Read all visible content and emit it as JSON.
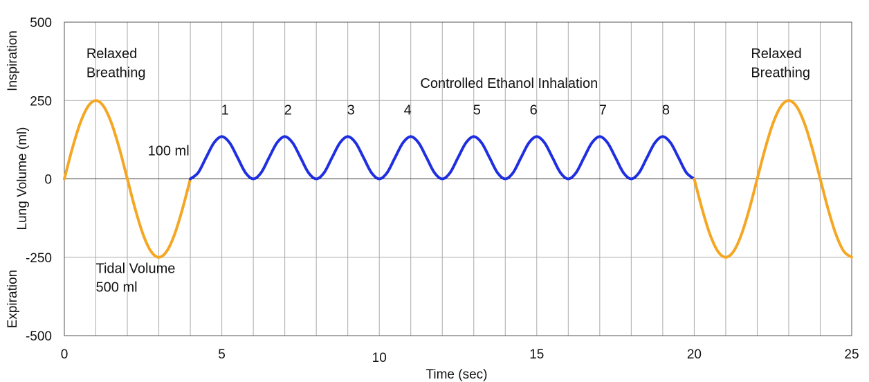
{
  "chart_data": {
    "type": "line",
    "title": "",
    "xlabel": "Time (sec)",
    "ylabel": "Lung Volume (ml)",
    "ylabel_top": "Inspiration",
    "ylabel_bottom": "Expiration",
    "xlim": [
      0,
      25
    ],
    "ylim": [
      -500,
      500
    ],
    "x_ticks": [
      0,
      5,
      10,
      15,
      20,
      25
    ],
    "y_ticks": [
      -500,
      -250,
      0,
      250,
      500
    ],
    "x_gridlines": [
      1,
      2,
      3,
      4,
      5,
      6,
      7,
      8,
      9,
      10,
      11,
      12,
      13,
      14,
      15,
      16,
      17,
      18,
      19,
      20,
      21,
      22,
      23,
      24
    ],
    "y_gridlines": [
      -250,
      0,
      250
    ],
    "grid": true,
    "legend": "none",
    "colors": {
      "relaxed": "#f5a623",
      "controlled": "#1f2fe0",
      "grid": "#aaaaaa",
      "axis": "#555555"
    },
    "series": [
      {
        "x": [
          0,
          0.25,
          0.5,
          0.75,
          1,
          1.25,
          1.5,
          1.75,
          2,
          2.25,
          2.5,
          2.75,
          3,
          3.25,
          3.5,
          3.75,
          4
        ],
        "y": [
          0,
          96,
          177,
          231,
          250,
          231,
          177,
          96,
          0,
          -96,
          -177,
          -231,
          -250,
          -231,
          -177,
          -96,
          0
        ]
      },
      {
        "x": [
          4,
          4.25,
          4.5,
          4.75,
          5,
          5.25,
          5.5,
          5.75,
          6,
          6.25,
          6.5,
          6.75,
          7,
          7.25,
          7.5,
          7.75,
          8,
          8.25,
          8.5,
          8.75,
          9,
          9.25,
          9.5,
          9.75,
          10,
          10.25,
          10.5,
          10.75,
          11,
          11.25,
          11.5,
          11.75,
          12,
          12.25,
          12.5,
          12.75,
          13,
          13.25,
          13.5,
          13.75,
          14,
          14.25,
          14.5,
          14.75,
          15,
          15.25,
          15.5,
          15.75,
          16,
          16.25,
          16.5,
          16.75,
          17,
          17.25,
          17.5,
          17.75,
          18,
          18.25,
          18.5,
          18.75,
          19,
          19.25,
          19.5,
          19.75,
          20
        ],
        "y": [
          0,
          20,
          68,
          115,
          135,
          115,
          68,
          20,
          0,
          20,
          68,
          115,
          135,
          115,
          68,
          20,
          0,
          20,
          68,
          115,
          135,
          115,
          68,
          20,
          0,
          20,
          68,
          115,
          135,
          115,
          68,
          20,
          0,
          20,
          68,
          115,
          135,
          115,
          68,
          20,
          0,
          20,
          68,
          115,
          135,
          115,
          68,
          20,
          0,
          20,
          68,
          115,
          135,
          115,
          68,
          20,
          0,
          20,
          68,
          115,
          135,
          115,
          68,
          20,
          0
        ]
      },
      {
        "x": [
          20,
          20.25,
          20.5,
          20.75,
          21,
          21.25,
          21.5,
          21.75,
          22,
          22.25,
          22.5,
          22.75,
          23,
          23.25,
          23.5,
          23.75,
          24,
          24.25,
          24.5,
          24.75,
          25
        ],
        "y": [
          0,
          -96,
          -177,
          -231,
          -250,
          -231,
          -177,
          -96,
          0,
          96,
          177,
          231,
          250,
          231,
          177,
          96,
          0,
          -96,
          -177,
          -231,
          -250
        ]
      }
    ],
    "annotations": [
      {
        "text": "Relaxed",
        "x": 0.7,
        "y": 385
      },
      {
        "text": "Breathing",
        "x": 0.7,
        "y": 325
      },
      {
        "text": "Tidal Volume",
        "x": 1.0,
        "y": -300
      },
      {
        "text": "500 ml",
        "x": 1.0,
        "y": -360
      },
      {
        "text": "Controlled Ethanol Inhalation",
        "x": 11.3,
        "y": 290
      },
      {
        "text": "100 ml",
        "x": 2.65,
        "y": 75
      },
      {
        "text": "Relaxed",
        "x": 21.8,
        "y": 385
      },
      {
        "text": "Breathing",
        "x": 21.8,
        "y": 325
      }
    ],
    "breath_labels": [
      {
        "text": "1",
        "x": 5.1,
        "y": 205
      },
      {
        "text": "2",
        "x": 7.1,
        "y": 205
      },
      {
        "text": "3",
        "x": 9.1,
        "y": 205
      },
      {
        "text": "4",
        "x": 10.9,
        "y": 205
      },
      {
        "text": "5",
        "x": 13.1,
        "y": 205
      },
      {
        "text": "6",
        "x": 14.9,
        "y": 205
      },
      {
        "text": "7",
        "x": 17.1,
        "y": 205
      },
      {
        "text": "8",
        "x": 19.1,
        "y": 205
      }
    ]
  }
}
